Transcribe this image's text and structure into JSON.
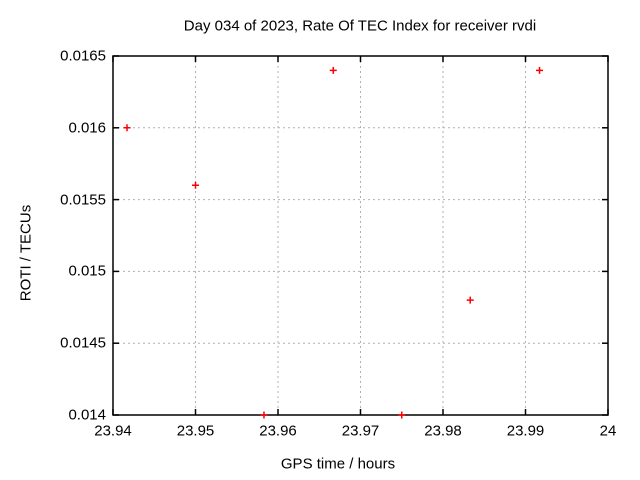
{
  "chart_data": {
    "type": "scatter",
    "title": "Day 034 of 2023, Rate Of TEC Index for receiver rvdi",
    "xlabel": "GPS time / hours",
    "ylabel": "ROTI / TECUs",
    "xlim": [
      23.94,
      24
    ],
    "ylim": [
      0.014,
      0.0165
    ],
    "x_ticks": [
      23.94,
      23.95,
      23.96,
      23.97,
      23.98,
      23.99,
      24
    ],
    "x_tick_labels": [
      "23.94",
      "23.95",
      "23.96",
      "23.97",
      "23.98",
      "23.99",
      "24"
    ],
    "y_ticks": [
      0.014,
      0.0145,
      0.015,
      0.0155,
      0.016,
      0.0165
    ],
    "y_tick_labels": [
      "0.014",
      "0.0145",
      "0.015",
      "0.0155",
      "0.016",
      "0.0165"
    ],
    "grid": true,
    "series": [
      {
        "marker": "plus",
        "color": "#ff0000",
        "points": [
          {
            "x": 23.9417,
            "y": 0.016
          },
          {
            "x": 23.95,
            "y": 0.0156
          },
          {
            "x": 23.9583,
            "y": 0.014
          },
          {
            "x": 23.9667,
            "y": 0.0164
          },
          {
            "x": 23.975,
            "y": 0.014
          },
          {
            "x": 23.9833,
            "y": 0.0148
          },
          {
            "x": 23.9917,
            "y": 0.0164
          }
        ]
      }
    ]
  },
  "colors": {
    "marker": "#ff0000",
    "grid": "#b0b0b0",
    "axis": "#000000",
    "text": "#000000",
    "background": "#ffffff"
  }
}
